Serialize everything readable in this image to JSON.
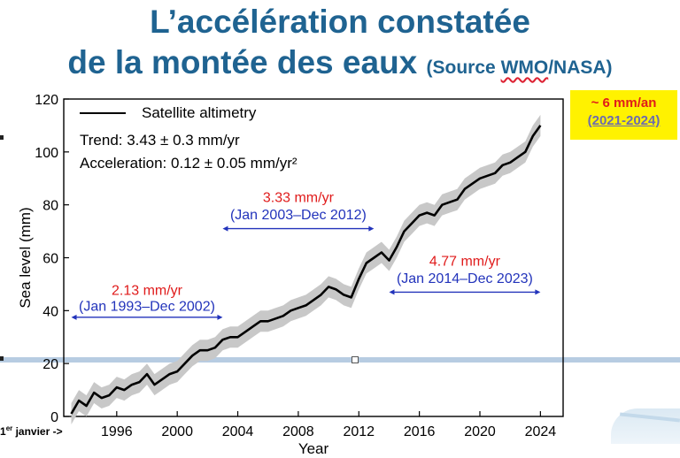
{
  "page": {
    "title_line1": "L’accélération constatée",
    "title_line2": "de la montée des eaux",
    "title_source_prefix": "(Source ",
    "title_source_org": "WMO",
    "title_source_suffix": "/NASA)",
    "note_rate": "~ 6 mm/an",
    "note_period": "(2021-2024)",
    "jan_label_prefix": "1",
    "jan_label_sup": "er",
    "jan_label_suffix": " janvier ->",
    "colors": {
      "title": "#1f6391",
      "note_bg": "#fff200",
      "rate_red": "#e01b1b",
      "period_blue": "#2233bb",
      "band": "#c8c8c8",
      "line": "#000000"
    }
  },
  "chart_data": {
    "type": "line",
    "xlabel": "Year",
    "ylabel": "Sea level (mm)",
    "xlim": [
      1992.5,
      2025.5
    ],
    "ylim": [
      0,
      120
    ],
    "x_ticks": [
      "1996",
      "2000",
      "2004",
      "2008",
      "2012",
      "2016",
      "2020",
      "2024"
    ],
    "y_ticks": [
      "0",
      "20",
      "40",
      "60",
      "80",
      "100",
      "120"
    ],
    "legend": "Satellite altimetry",
    "trend_text": "Trend: 3.43 ± 0.3 mm/yr",
    "accel_text": "Acceleration: 0.12 ± 0.05 mm/yr²",
    "grid": false,
    "series": [
      {
        "name": "Satellite altimetry",
        "uncertainty_mm": 4,
        "x": [
          1993.0,
          1993.5,
          1994.0,
          1994.5,
          1995.0,
          1995.5,
          1996.0,
          1996.5,
          1997.0,
          1997.5,
          1998.0,
          1998.5,
          1999.0,
          1999.5,
          2000.0,
          2000.5,
          2001.0,
          2001.5,
          2002.0,
          2002.5,
          2003.0,
          2003.5,
          2004.0,
          2004.5,
          2005.0,
          2005.5,
          2006.0,
          2006.5,
          2007.0,
          2007.5,
          2008.0,
          2008.5,
          2009.0,
          2009.5,
          2010.0,
          2010.5,
          2011.0,
          2011.5,
          2012.0,
          2012.5,
          2013.0,
          2013.5,
          2014.0,
          2014.5,
          2015.0,
          2015.5,
          2016.0,
          2016.5,
          2017.0,
          2017.5,
          2018.0,
          2018.5,
          2019.0,
          2019.5,
          2020.0,
          2020.5,
          2021.0,
          2021.5,
          2022.0,
          2022.5,
          2023.0,
          2023.5,
          2024.0
        ],
        "y": [
          1,
          6,
          4,
          9,
          7,
          8,
          11,
          10,
          12,
          13,
          16,
          12,
          14,
          16,
          17,
          20,
          23,
          25,
          25,
          26,
          29,
          30,
          30,
          32,
          34,
          36,
          36,
          37,
          38,
          40,
          41,
          42,
          44,
          46,
          49,
          48,
          46,
          45,
          52,
          58,
          60,
          62,
          59,
          64,
          70,
          73,
          76,
          77,
          76,
          80,
          81,
          82,
          86,
          88,
          90,
          91,
          92,
          95,
          96,
          98,
          100,
          106,
          110
        ]
      }
    ],
    "annotations": [
      {
        "rate": "2.13 mm/yr",
        "period": "(Jan 1993–Dec 2002)",
        "x_start": 1993,
        "x_end": 2003,
        "rate_y": 46,
        "period_y": 40,
        "arrow_y": 37.5
      },
      {
        "rate": "3.33 mm/yr",
        "period": "(Jan 2003–Dec 2012)",
        "x_start": 2003,
        "x_end": 2013,
        "rate_y": 81,
        "period_y": 74.5,
        "arrow_y": 71
      },
      {
        "rate": "4.77 mm/yr",
        "period": "(Jan 2014–Dec 2023)",
        "x_start": 2014,
        "x_end": 2024,
        "rate_y": 57,
        "period_y": 50.5,
        "arrow_y": 47
      }
    ]
  }
}
